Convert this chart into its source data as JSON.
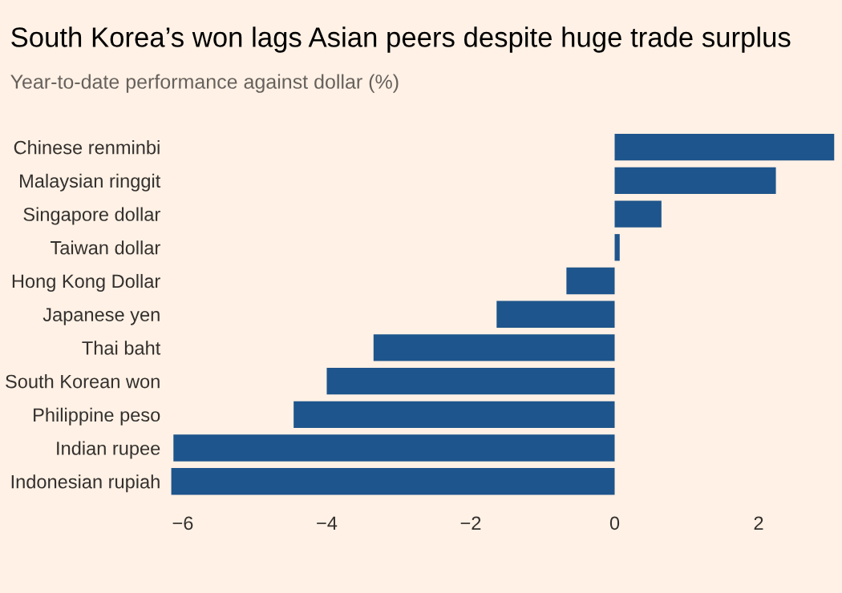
{
  "chart_data": {
    "type": "bar",
    "orientation": "horizontal",
    "title": "South Korea’s won lags Asian peers despite huge trade surplus",
    "subtitle": "Year-to-date performance against dollar (%)",
    "categories": [
      "Chinese renminbi",
      "Malaysian ringgit",
      "Singapore dollar",
      "Taiwan dollar",
      "Hong Kong Dollar",
      "Japanese yen",
      "Thai baht",
      "South Korean won",
      "Philippine peso",
      "Indian rupee",
      "Indonesian rupiah"
    ],
    "values": [
      3.05,
      2.24,
      0.65,
      0.07,
      -0.67,
      -1.64,
      -3.35,
      -4.0,
      -4.46,
      -6.13,
      -6.16
    ],
    "color": "#1e558c",
    "xlim": [
      -6.2,
      3.1
    ],
    "xticks": [
      -6,
      -4,
      -2,
      0,
      2
    ],
    "grid": false,
    "legend": false
  }
}
